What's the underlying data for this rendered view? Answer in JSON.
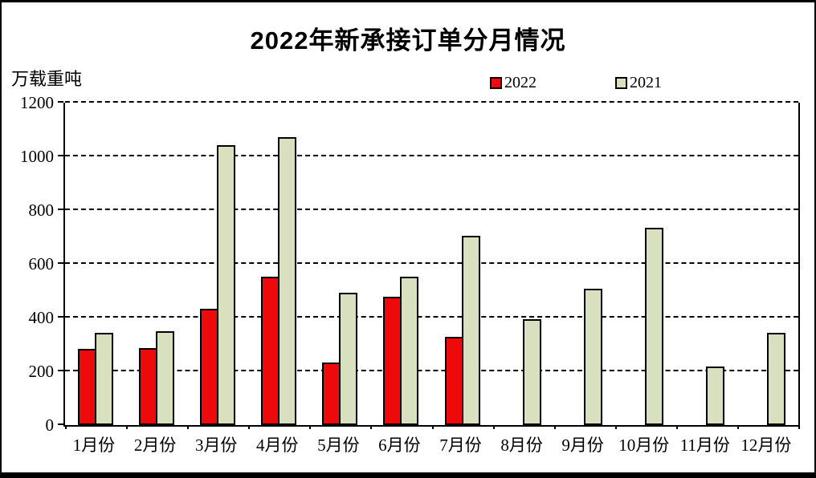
{
  "chart_data": {
    "type": "bar",
    "title": "2022年新承接订单分月情况",
    "unit_label": "万载重吨",
    "categories": [
      "1月份",
      "2月份",
      "3月份",
      "4月份",
      "5月份",
      "6月份",
      "7月份",
      "8月份",
      "9月份",
      "10月份",
      "11月份",
      "12月份"
    ],
    "series": [
      {
        "name": "2022",
        "color": "#ee0a0a",
        "values": [
          280,
          285,
          430,
          550,
          230,
          475,
          325,
          null,
          null,
          null,
          null,
          null
        ]
      },
      {
        "name": "2021",
        "color": "#d9e0bf",
        "values": [
          340,
          345,
          1040,
          1070,
          490,
          550,
          700,
          390,
          505,
          730,
          215,
          340
        ]
      }
    ],
    "ylim": [
      0,
      1200
    ],
    "yticks": [
      0,
      200,
      400,
      600,
      800,
      1000,
      1200
    ],
    "ylabel": "",
    "xlabel": "",
    "grid": "horizontal-dashed",
    "legend_position": "top"
  },
  "legend": {
    "item_2022": "2022",
    "item_2021": "2021"
  }
}
